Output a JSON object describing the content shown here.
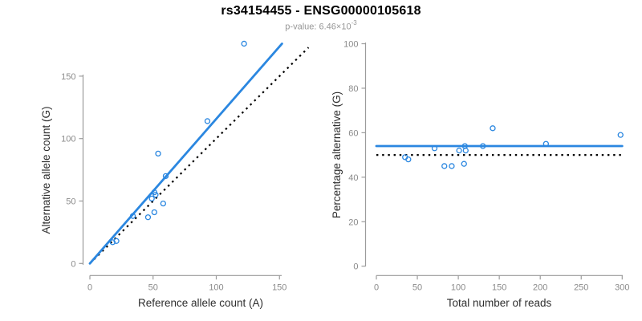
{
  "header": {
    "title": "rs34154455 - ENSG00000105618",
    "subtitle_prefix": "p-value: 6.46×10",
    "subtitle_exponent": "-3"
  },
  "colors": {
    "accent_blue": "#2b87e0",
    "reference_line_black": "#000000",
    "axis_line": "#9c9c9c",
    "tick_label": "#8a8a8a",
    "axis_title": "#2e2e2e",
    "title": "#000000",
    "subtitle": "#969696",
    "background": "#ffffff"
  },
  "chart_data": [
    {
      "type": "scatter",
      "panel": "left",
      "xlabel": "Reference allele count (A)",
      "ylabel": "Alternative allele count (G)",
      "xlim": [
        0,
        176
      ],
      "ylim": [
        0,
        178
      ],
      "xticks": [
        0,
        50,
        100,
        150
      ],
      "yticks": [
        0,
        50,
        100,
        150
      ],
      "grid": "off",
      "marker": "open-circle",
      "points": [
        [
          18,
          17
        ],
        [
          21,
          18
        ],
        [
          34,
          38
        ],
        [
          46,
          37
        ],
        [
          51,
          41
        ],
        [
          49,
          52
        ],
        [
          58,
          48
        ],
        [
          51,
          57
        ],
        [
          52,
          55
        ],
        [
          60,
          70
        ],
        [
          54,
          88
        ],
        [
          93,
          114
        ],
        [
          122,
          176
        ]
      ],
      "fit_line": {
        "x1": 0,
        "y1": 0,
        "x2": 152,
        "y2": 176
      },
      "reference_line": {
        "x1": 0,
        "y1": 0,
        "x2": 173,
        "y2": 173
      }
    },
    {
      "type": "scatter",
      "panel": "right",
      "xlabel": "Total number of reads",
      "ylabel": "Percentage alternative (G)",
      "xlim": [
        0,
        300
      ],
      "ylim": [
        0,
        100
      ],
      "xticks": [
        0,
        50,
        100,
        150,
        200,
        250,
        300
      ],
      "yticks": [
        0,
        20,
        40,
        60,
        80,
        100
      ],
      "grid": "off",
      "marker": "open-circle",
      "points": [
        [
          35,
          49
        ],
        [
          39,
          48
        ],
        [
          71,
          53
        ],
        [
          83,
          45
        ],
        [
          92,
          45
        ],
        [
          101,
          52
        ],
        [
          107,
          46
        ],
        [
          108,
          54
        ],
        [
          109,
          52
        ],
        [
          130,
          54
        ],
        [
          142,
          62
        ],
        [
          207,
          55
        ],
        [
          298,
          59
        ]
      ],
      "fit_line": {
        "x1": 0,
        "y1": 54,
        "x2": 300,
        "y2": 54
      },
      "reference_line": {
        "x1": 0,
        "y1": 50,
        "x2": 300,
        "y2": 50
      }
    }
  ]
}
